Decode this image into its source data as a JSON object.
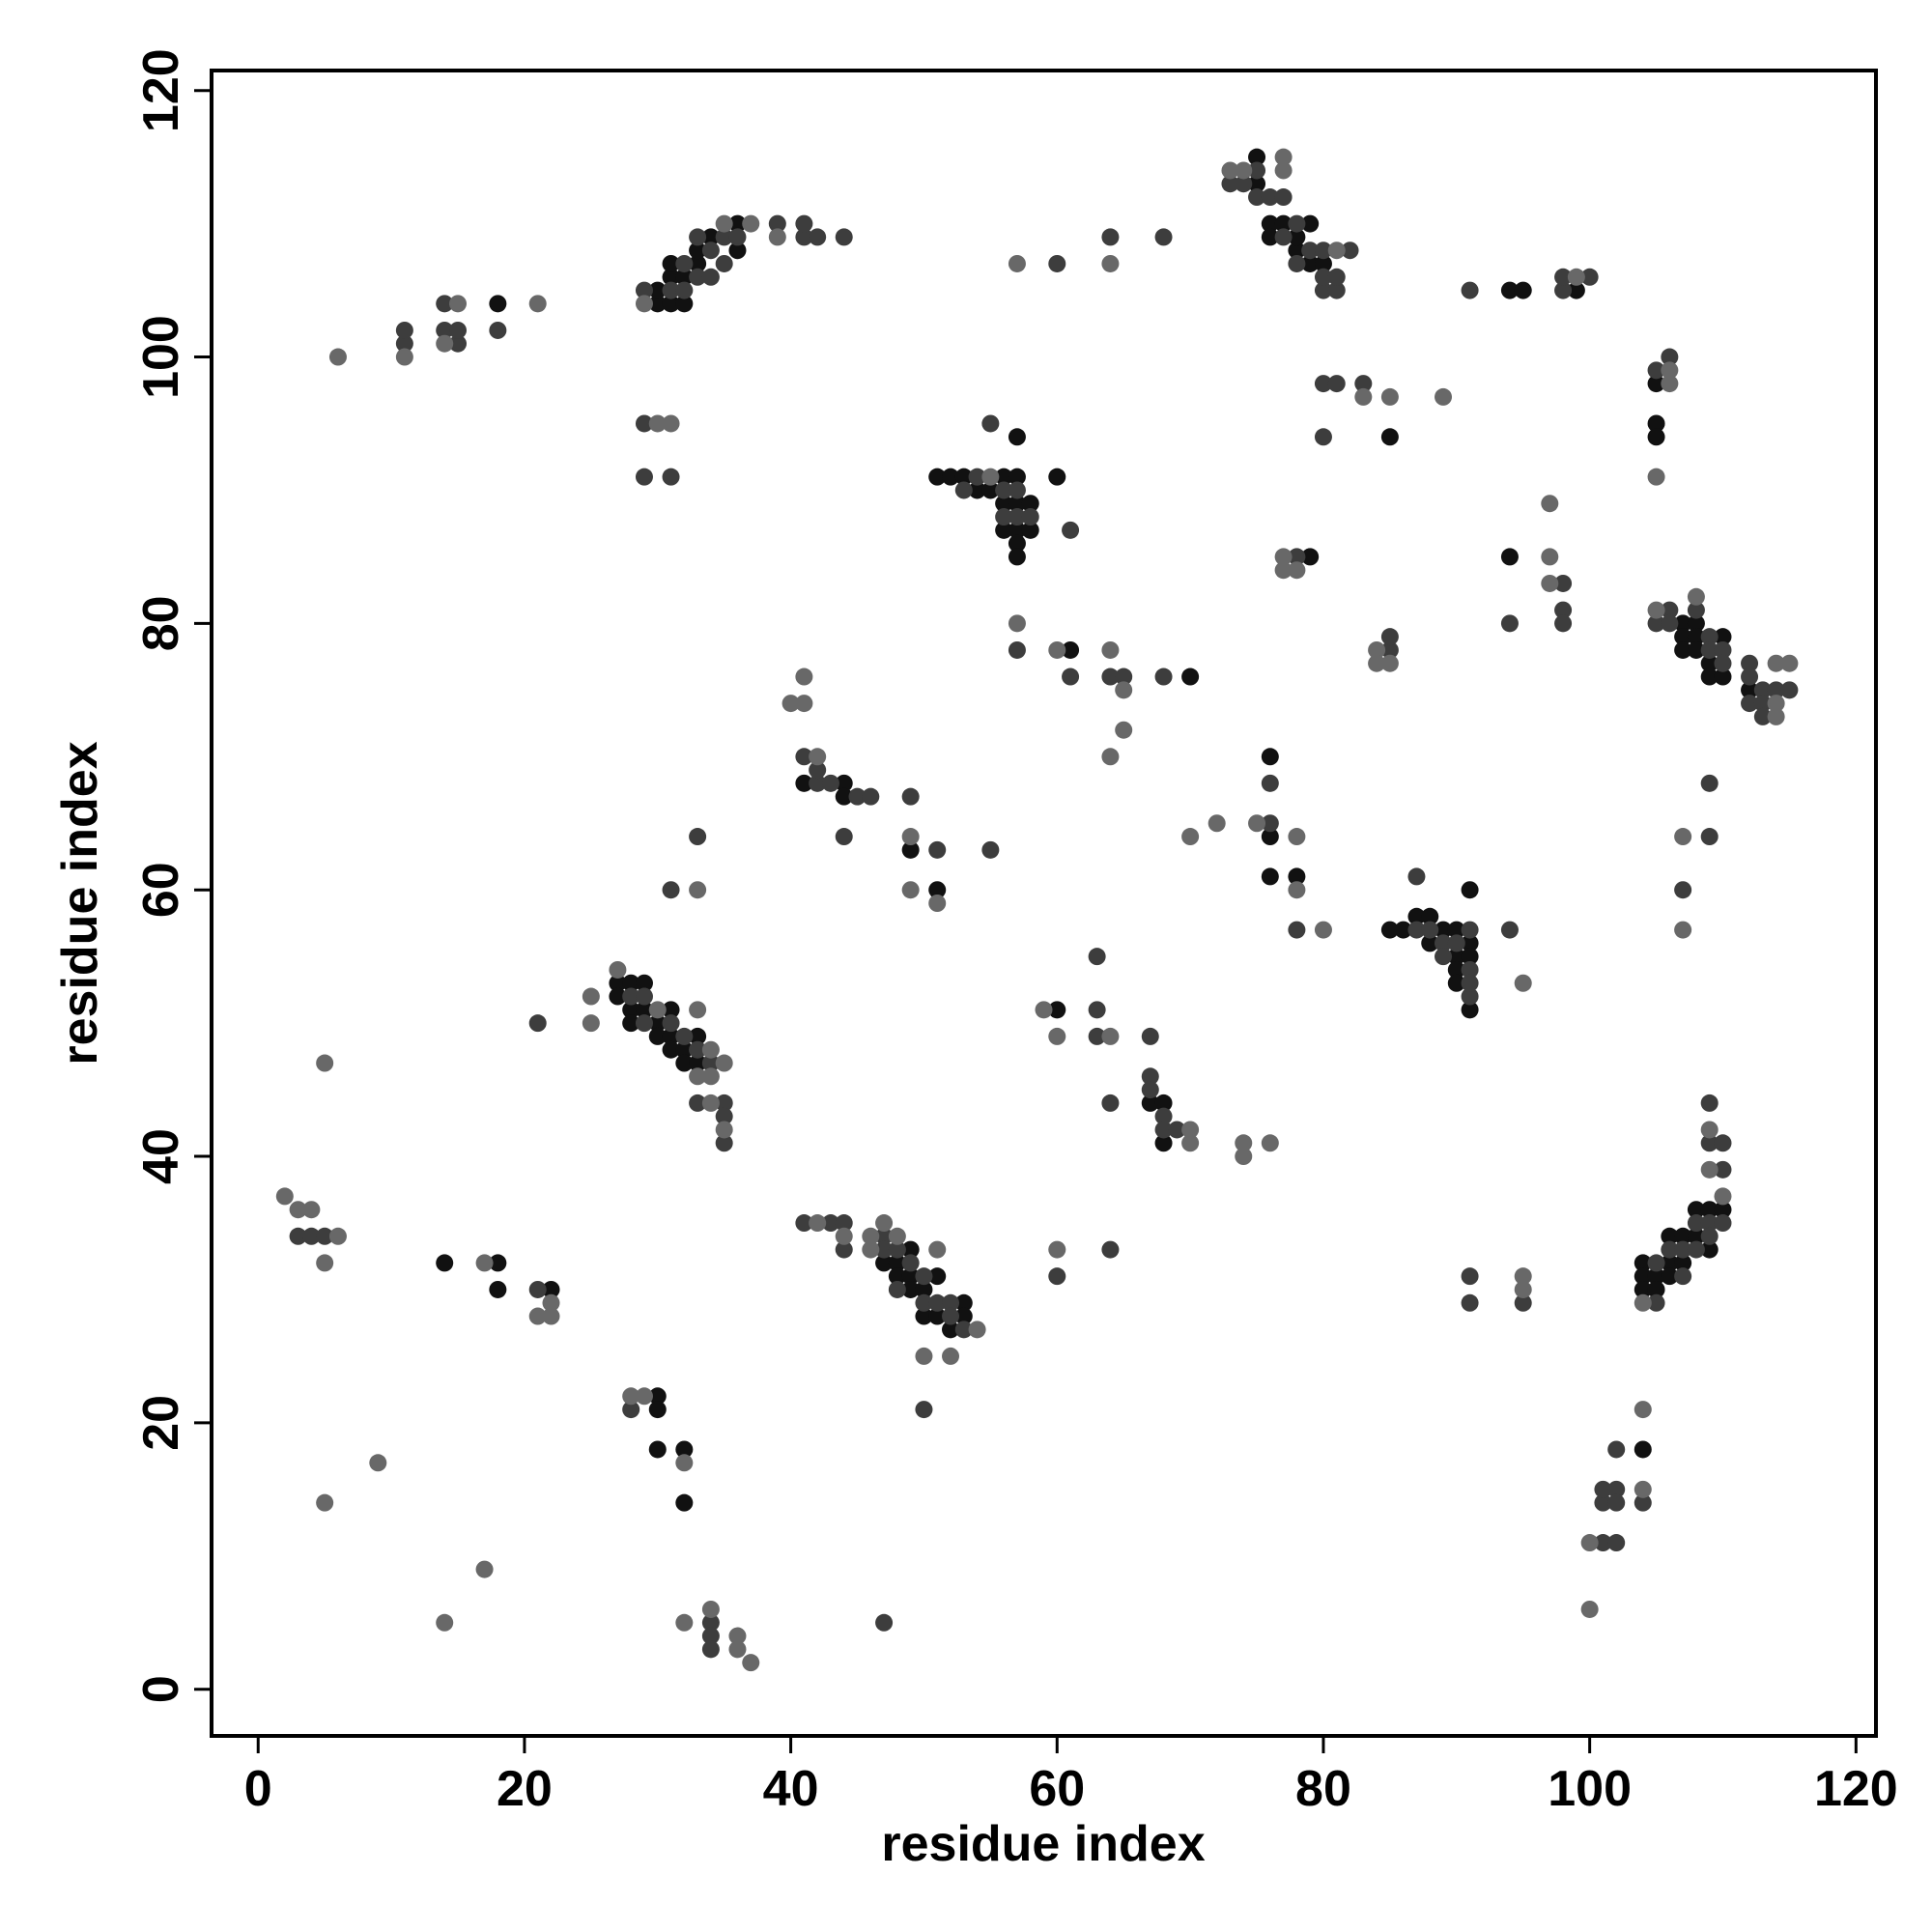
{
  "chart_data": {
    "type": "scatter",
    "xlabel": "residue index",
    "ylabel": "residue index",
    "xlim": [
      -3.5,
      121.5
    ],
    "ylim": [
      -3.5,
      121.5
    ],
    "xticks": [
      0,
      20,
      40,
      60,
      80,
      100,
      120
    ],
    "yticks": [
      0,
      20,
      40,
      60,
      80,
      100,
      120
    ],
    "series": [
      {
        "color": "#111111",
        "x": [
          18,
          30,
          30,
          31,
          31,
          31,
          32,
          32,
          33,
          33,
          34,
          36,
          36,
          75,
          75,
          76,
          76,
          77,
          78,
          79,
          79,
          80,
          78,
          94,
          95,
          99,
          85,
          105,
          105,
          105,
          51,
          52,
          53,
          54,
          55,
          56,
          56,
          56,
          57,
          57,
          57,
          57,
          57,
          57,
          58,
          58,
          60,
          61,
          70,
          79,
          94,
          107,
          107,
          107,
          108,
          108,
          108,
          109,
          109,
          110,
          110,
          112,
          41,
          44,
          44,
          49,
          51,
          76,
          76,
          76,
          78,
          85,
          86,
          87,
          88,
          88,
          89,
          90,
          90,
          90,
          90,
          91,
          91,
          91,
          91,
          27,
          27,
          28,
          28,
          28,
          29,
          29,
          30,
          30,
          31,
          31,
          31,
          32,
          32,
          33,
          33,
          60,
          67,
          68,
          68,
          14,
          18,
          18,
          22,
          47,
          48,
          48,
          49,
          49,
          49,
          50,
          50,
          51,
          51,
          52,
          53,
          53,
          30,
          30,
          30,
          32,
          32,
          104,
          104,
          104,
          105,
          105,
          106,
          106,
          106,
          107,
          107,
          108,
          108,
          109,
          109,
          110,
          104
        ],
        "values": [
          104,
          104,
          105,
          104,
          106,
          107,
          104,
          106,
          107,
          108,
          109,
          108,
          110,
          113,
          115,
          110,
          109,
          110,
          108,
          107,
          110,
          107,
          109,
          105,
          105,
          105,
          94,
          98,
          95,
          94,
          91,
          91,
          91,
          90,
          90,
          91,
          89,
          87,
          91,
          89,
          87,
          86,
          85,
          94,
          89,
          87,
          91,
          78,
          76,
          85,
          85,
          80,
          79,
          78,
          80,
          79,
          78,
          77,
          76,
          79,
          76,
          75,
          68,
          68,
          67,
          63,
          60,
          70,
          64,
          61,
          61,
          57,
          57,
          58,
          58,
          56,
          57,
          57,
          55,
          54,
          53,
          56,
          55,
          51,
          60,
          53,
          52,
          53,
          51,
          50,
          53,
          51,
          50,
          49,
          51,
          49,
          48,
          48,
          47,
          49,
          47,
          51,
          44,
          44,
          41,
          32,
          32,
          30,
          30,
          32,
          32,
          31,
          33,
          31,
          30,
          30,
          28,
          31,
          28,
          27,
          29,
          28,
          22,
          21,
          18,
          18,
          14,
          32,
          31,
          30,
          31,
          30,
          34,
          32,
          31,
          34,
          32,
          36,
          34,
          36,
          33,
          36,
          18
        ]
      },
      {
        "color": "#3d3d3d",
        "x": [
          11,
          11,
          14,
          14,
          15,
          15,
          18,
          29,
          31,
          32,
          32,
          33,
          33,
          34,
          34,
          35,
          35,
          36,
          39,
          41,
          41,
          42,
          44,
          29,
          29,
          31,
          73,
          74,
          75,
          75,
          76,
          77,
          77,
          78,
          78,
          79,
          80,
          80,
          81,
          81,
          82,
          80,
          60,
          64,
          68,
          91,
          98,
          98,
          100,
          80,
          81,
          83,
          80,
          105,
          106,
          53,
          54,
          56,
          56,
          57,
          57,
          58,
          61,
          55,
          57,
          61,
          64,
          65,
          68,
          78,
          94,
          98,
          98,
          98,
          85,
          85,
          105,
          106,
          106,
          108,
          109,
          109,
          110,
          110,
          112,
          112,
          112,
          113,
          113,
          113,
          114,
          115,
          109,
          109,
          107,
          41,
          42,
          42,
          43,
          45,
          46,
          44,
          49,
          51,
          55,
          31,
          33,
          76,
          76,
          78,
          87,
          87,
          88,
          89,
          89,
          90,
          91,
          91,
          91,
          91,
          94,
          21,
          28,
          29,
          29,
          31,
          32,
          33,
          34,
          35,
          35,
          35,
          33,
          63,
          63,
          63,
          67,
          67,
          67,
          68,
          68,
          69,
          64,
          3,
          4,
          5,
          21,
          41,
          43,
          44,
          44,
          47,
          47,
          48,
          48,
          49,
          50,
          50,
          51,
          52,
          52,
          53,
          50,
          60,
          64,
          28,
          91,
          91,
          95,
          105,
          105,
          106,
          107,
          107,
          108,
          108,
          109,
          109,
          109,
          109,
          110,
          110,
          110,
          101,
          101,
          101,
          102,
          102,
          102,
          102,
          104,
          34,
          34,
          34,
          47
        ],
        "values": [
          101,
          102,
          102,
          104,
          101,
          102,
          102,
          105,
          105,
          105,
          107,
          106,
          109,
          106,
          108,
          107,
          109,
          109,
          110,
          109,
          110,
          109,
          109,
          95,
          91,
          91,
          113,
          113,
          112,
          114,
          112,
          112,
          109,
          110,
          107,
          108,
          105,
          106,
          105,
          106,
          108,
          108,
          107,
          109,
          109,
          105,
          105,
          106,
          106,
          98,
          98,
          98,
          94,
          99,
          100,
          90,
          91,
          90,
          88,
          90,
          88,
          88,
          87,
          95,
          78,
          76,
          76,
          76,
          76,
          85,
          80,
          83,
          81,
          80,
          78,
          79,
          80,
          81,
          80,
          81,
          79,
          78,
          78,
          77,
          77,
          76,
          74,
          75,
          74,
          73,
          75,
          75,
          68,
          64,
          60,
          70,
          68,
          69,
          68,
          67,
          67,
          64,
          67,
          63,
          63,
          60,
          64,
          68,
          65,
          57,
          61,
          57,
          57,
          56,
          55,
          56,
          57,
          54,
          52,
          53,
          57,
          50,
          52,
          52,
          50,
          50,
          49,
          48,
          47,
          44,
          43,
          41,
          44,
          55,
          51,
          49,
          49,
          46,
          45,
          43,
          42,
          42,
          44,
          34,
          34,
          34,
          30,
          35,
          35,
          35,
          33,
          34,
          33,
          33,
          30,
          32,
          31,
          29,
          29,
          29,
          28,
          27,
          21,
          31,
          33,
          21,
          31,
          29,
          29,
          32,
          29,
          33,
          33,
          31,
          35,
          33,
          35,
          34,
          44,
          41,
          41,
          39,
          35,
          11,
          14,
          15,
          15,
          14,
          11,
          18,
          14,
          5,
          4,
          3,
          5
        ]
      },
      {
        "color": "#686868",
        "x": [
          6,
          11,
          14,
          15,
          21,
          29,
          35,
          37,
          39,
          30,
          31,
          73,
          74,
          77,
          77,
          81,
          57,
          64,
          99,
          83,
          85,
          89,
          106,
          106,
          105,
          55,
          57,
          60,
          64,
          65,
          65,
          64,
          77,
          77,
          78,
          97,
          97,
          97,
          84,
          84,
          85,
          105,
          108,
          114,
          114,
          114,
          115,
          107,
          107,
          40,
          41,
          41,
          42,
          49,
          49,
          51,
          33,
          72,
          70,
          75,
          78,
          78,
          80,
          95,
          25,
          25,
          27,
          30,
          33,
          33,
          34,
          34,
          35,
          35,
          34,
          5,
          59,
          60,
          64,
          70,
          70,
          74,
          74,
          76,
          2,
          3,
          4,
          5,
          6,
          17,
          21,
          22,
          22,
          42,
          44,
          46,
          46,
          47,
          48,
          51,
          54,
          50,
          52,
          60,
          28,
          29,
          32,
          95,
          95,
          104,
          109,
          109,
          110,
          100,
          104,
          104,
          100,
          5,
          9,
          17,
          14,
          32,
          34,
          36,
          36,
          37
        ],
        "values": [
          100,
          100,
          101,
          104,
          104,
          104,
          110,
          110,
          109,
          95,
          95,
          114,
          114,
          114,
          115,
          108,
          107,
          107,
          106,
          97,
          97,
          97,
          98,
          99,
          91,
          91,
          80,
          78,
          78,
          75,
          72,
          70,
          84,
          85,
          84,
          89,
          85,
          83,
          78,
          77,
          77,
          81,
          82,
          77,
          74,
          73,
          77,
          64,
          57,
          74,
          74,
          76,
          70,
          64,
          60,
          59,
          60,
          65,
          64,
          65,
          64,
          60,
          57,
          53,
          52,
          50,
          54,
          51,
          51,
          46,
          48,
          46,
          47,
          42,
          44,
          47,
          51,
          49,
          49,
          42,
          41,
          41,
          40,
          41,
          37,
          36,
          36,
          32,
          34,
          32,
          28,
          28,
          29,
          35,
          34,
          34,
          33,
          35,
          34,
          33,
          27,
          25,
          25,
          33,
          22,
          22,
          17,
          31,
          30,
          29,
          42,
          39,
          37,
          11,
          21,
          15,
          6,
          14,
          17,
          9,
          5,
          5,
          6,
          4,
          3,
          2
        ]
      }
    ]
  }
}
